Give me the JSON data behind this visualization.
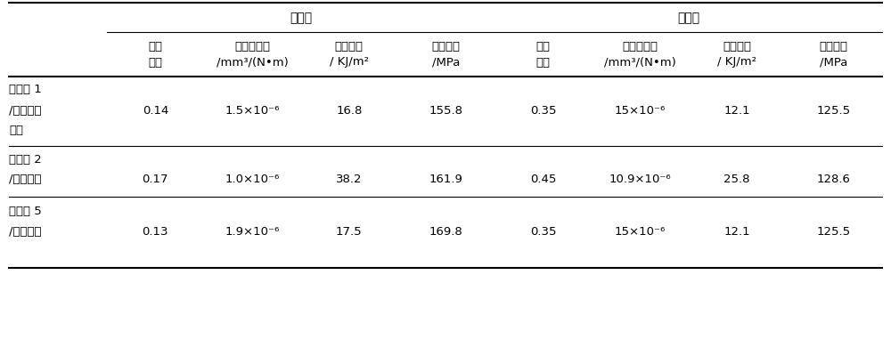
{
  "group_headers": [
    {
      "text": "复合后",
      "col_span": [
        0,
        3
      ]
    },
    {
      "text": "复合前",
      "col_span": [
        4,
        7
      ]
    }
  ],
  "col_headers_line1": [
    "摩擦",
    "体积磨损率",
    "冲击强度",
    "弯曲强度",
    "摩擦",
    "体积磨损率",
    "冲击强度",
    "弯曲强度"
  ],
  "col_headers_line2": [
    "系数",
    "/mm³/(N•m)",
    "/ KJ/m²",
    "/MPa",
    "系数",
    "/mm³/(N•m)",
    "/ KJ/m²",
    "/MPa"
  ],
  "rows": [
    {
      "labels": [
        "实施例 1",
        "/双马来酰",
        "亚胺"
      ],
      "data_line": 1,
      "values": [
        "0.14",
        "1.5×10⁻⁶",
        "16.8",
        "155.8",
        "0.35",
        "15×10⁻⁶",
        "12.1",
        "125.5"
      ]
    },
    {
      "labels": [
        "实施例 2",
        "/环氧树脂"
      ],
      "data_line": -1,
      "values": [
        "0.17",
        "1.0×10⁻⁶",
        "38.2",
        "161.9",
        "0.45",
        "10.9×10⁻⁶",
        "25.8",
        "128.6"
      ]
    },
    {
      "labels": [
        "实施例 5",
        "/双马来酰"
      ],
      "data_line": -1,
      "values": [
        "0.13",
        "1.9×10⁻⁶",
        "17.5",
        "169.8",
        "0.35",
        "15×10⁻⁶",
        "12.1",
        "125.5"
      ]
    }
  ],
  "background_color": "#ffffff",
  "text_color": "#000000",
  "line_color": "#000000",
  "font_size": 9.5,
  "header_font_size": 10
}
